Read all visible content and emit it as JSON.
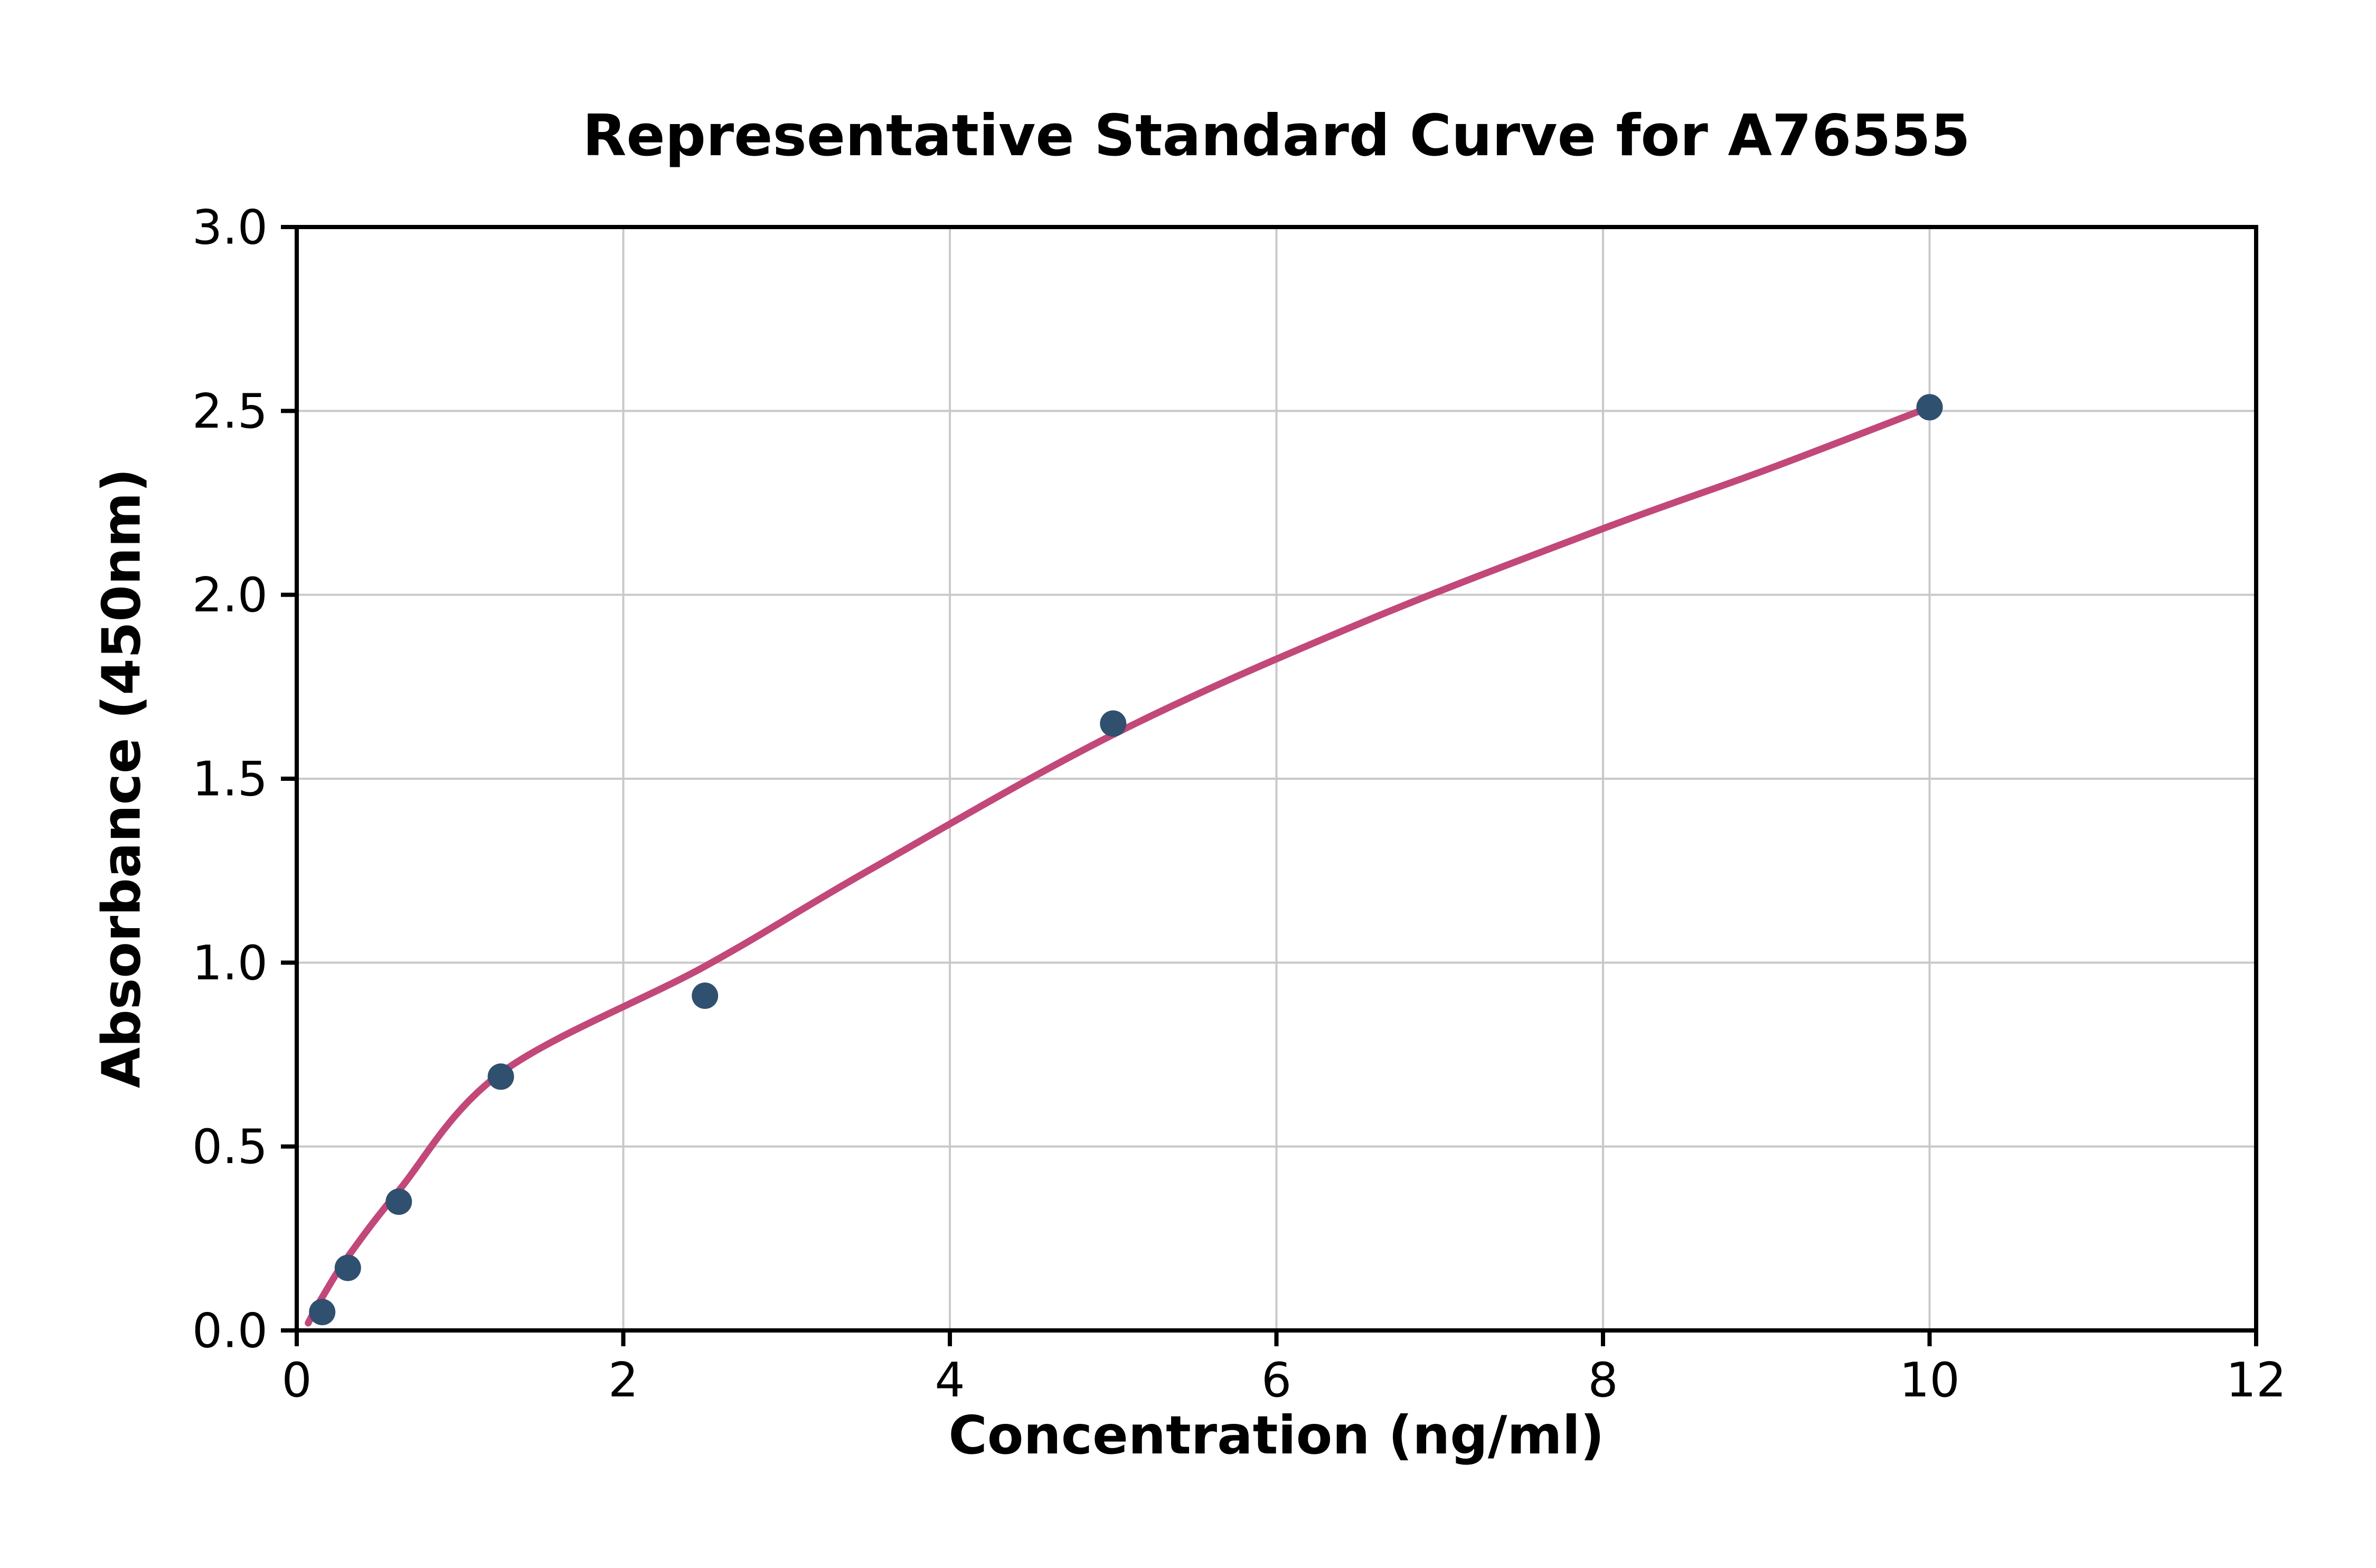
{
  "title": "Representative Standard Curve for A76555",
  "chart_data": {
    "type": "scatter",
    "title": "Representative Standard Curve for A76555",
    "xlabel": "Concentration (ng/ml)",
    "ylabel": "Absorbance (450nm)",
    "xlim": [
      0,
      12
    ],
    "ylim": [
      0,
      3
    ],
    "grid": true,
    "legend": "none",
    "x_ticks": [
      0,
      2,
      4,
      6,
      8,
      10,
      12
    ],
    "x_tick_labels": [
      "0",
      "2",
      "4",
      "6",
      "8",
      "10",
      "12"
    ],
    "y_ticks": [
      0,
      0.5,
      1,
      1.5,
      2,
      2.5,
      3
    ],
    "y_tick_labels": [
      "0.0",
      "0.5",
      "1.0",
      "1.5",
      "2.0",
      "2.5",
      "3.0"
    ],
    "points": [
      {
        "x": 0.156,
        "y": 0.05
      },
      {
        "x": 0.313,
        "y": 0.17
      },
      {
        "x": 0.625,
        "y": 0.35
      },
      {
        "x": 1.25,
        "y": 0.69
      },
      {
        "x": 2.5,
        "y": 0.91
      },
      {
        "x": 5,
        "y": 1.65
      },
      {
        "x": 10,
        "y": 2.51
      }
    ],
    "fit_curve": [
      {
        "x": 0.07,
        "y": 0.02
      },
      {
        "x": 0.156,
        "y": 0.09
      },
      {
        "x": 0.313,
        "y": 0.2
      },
      {
        "x": 0.625,
        "y": 0.38
      },
      {
        "x": 1.25,
        "y": 0.7
      },
      {
        "x": 2.5,
        "y": 0.99
      },
      {
        "x": 3.5,
        "y": 1.25
      },
      {
        "x": 5,
        "y": 1.62
      },
      {
        "x": 6.5,
        "y": 1.92
      },
      {
        "x": 8,
        "y": 2.18
      },
      {
        "x": 9,
        "y": 2.34
      },
      {
        "x": 10,
        "y": 2.51
      }
    ],
    "colors": {
      "curve": "#c2487a",
      "points": "#30506f",
      "grid": "#c9c9c9",
      "spine": "#000000",
      "background": "#ffffff"
    }
  }
}
